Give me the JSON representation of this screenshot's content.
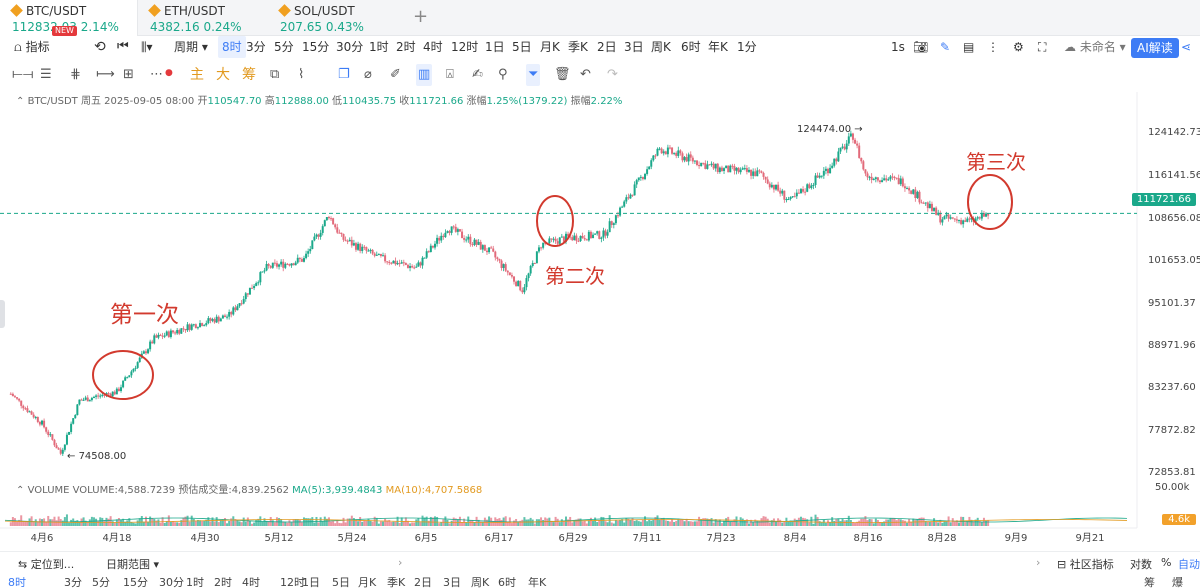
{
  "tabs": [
    {
      "symbol": "BTC/USDT",
      "price": "112832.03",
      "change": "2.14%",
      "active": true
    },
    {
      "symbol": "ETH/USDT",
      "price": "4382.16",
      "change": "0.24%",
      "active": false
    },
    {
      "symbol": "SOL/USDT",
      "price": "207.65",
      "change": "0.43%",
      "active": false
    }
  ],
  "tab_badge": "NEW",
  "add_tab": "+",
  "toolbar": {
    "indicator": "指标",
    "period": "周期",
    "intervals": [
      "8时",
      "3分",
      "5分",
      "15分",
      "30分",
      "1时",
      "2时",
      "4时",
      "12时",
      "1日",
      "5日",
      "月K",
      "季K",
      "2日",
      "3日",
      "周K",
      "6时",
      "年K",
      "1分"
    ],
    "selected_interval": "8时",
    "right": [
      "1s"
    ],
    "layout_name": "未命名",
    "ai": "AI解读"
  },
  "draw_tools": {
    "main": "主",
    "big": "大",
    "chip": "筹"
  },
  "legend": {
    "symbol": "BTC/USDT",
    "date": "周五 2025-09-05 08:00",
    "open_label": "开",
    "open": "110547.70",
    "high_label": "高",
    "high": "112888.00",
    "low_label": "低",
    "low": "110435.75",
    "close_label": "收",
    "close": "111721.66",
    "chg_label": "涨幅",
    "chg": "1.25%(1379.22)",
    "amp_label": "振幅",
    "amp": "2.22%"
  },
  "volume_legend": {
    "name": "VOLUME",
    "volume": "VOLUME:4,588.7239",
    "est": "预估成交量:4,839.2562",
    "ma5": "MA(5):3,939.4843",
    "ma10": "MA(10):4,707.5868"
  },
  "annotations": {
    "first": "第一次",
    "second": "第二次",
    "third": "第三次"
  },
  "markers": {
    "high": "124474.00",
    "low": "74508.00",
    "current": "111721.66"
  },
  "colors": {
    "up": "#1aa88a",
    "down": "#e26a7a",
    "annotation": "#d23a2e",
    "accent": "#3d7cf5"
  },
  "chart_data": {
    "type": "candlestick",
    "y_ticks": [
      "124142.73",
      "116141.56",
      "108656.08",
      "101653.05",
      "95101.37",
      "88971.96",
      "83237.60",
      "77872.82",
      "72853.81"
    ],
    "x_ticks": [
      "4月6",
      "4月18",
      "4月30",
      "5月12",
      "5月24",
      "6月5",
      "6月17",
      "6月29",
      "7月11",
      "7月23",
      "8月4",
      "8月16",
      "8月28",
      "9月9",
      "9月21"
    ],
    "volume_ticks": [
      "50.00k",
      "4.6k"
    ],
    "close_path": [
      [
        "4月1",
        84500
      ],
      [
        "4月6",
        80000
      ],
      [
        "4月9",
        75500
      ],
      [
        "4月12",
        83500
      ],
      [
        "4月18",
        84800
      ],
      [
        "4月24",
        92800
      ],
      [
        "4月30",
        94800
      ],
      [
        "5月6",
        96300
      ],
      [
        "5月12",
        103500
      ],
      [
        "5月18",
        104800
      ],
      [
        "5月22",
        111500
      ],
      [
        "5月24",
        108000
      ],
      [
        "5月30",
        105000
      ],
      [
        "6月5",
        103500
      ],
      [
        "6月10",
        109600
      ],
      [
        "6月17",
        105800
      ],
      [
        "6月22",
        100200
      ],
      [
        "6月25",
        107000
      ],
      [
        "6月29",
        108000
      ],
      [
        "7月5",
        108500
      ],
      [
        "7月11",
        117000
      ],
      [
        "7月14",
        121500
      ],
      [
        "7月23",
        118500
      ],
      [
        "7月30",
        117700
      ],
      [
        "8月4",
        113500
      ],
      [
        "8月10",
        118500
      ],
      [
        "8月14",
        123500
      ],
      [
        "8月16",
        117500
      ],
      [
        "8月22",
        116500
      ],
      [
        "8月28",
        111000
      ],
      [
        "9月2",
        110500
      ],
      [
        "9月5",
        111721.66
      ]
    ]
  },
  "bottom": {
    "locate": "定位到...",
    "range": "日期范围",
    "community": "社区指标",
    "log": "对数",
    "pct": "%",
    "auto": "自动",
    "intervals": [
      "8时",
      "3分",
      "5分",
      "15分",
      "30分",
      "1时",
      "2时",
      "4时",
      "12时",
      "1日",
      "5日",
      "月K",
      "季K",
      "2日",
      "3日",
      "周K",
      "6时",
      "年K",
      "1分"
    ],
    "right_labels": [
      "筹",
      "爆"
    ]
  }
}
